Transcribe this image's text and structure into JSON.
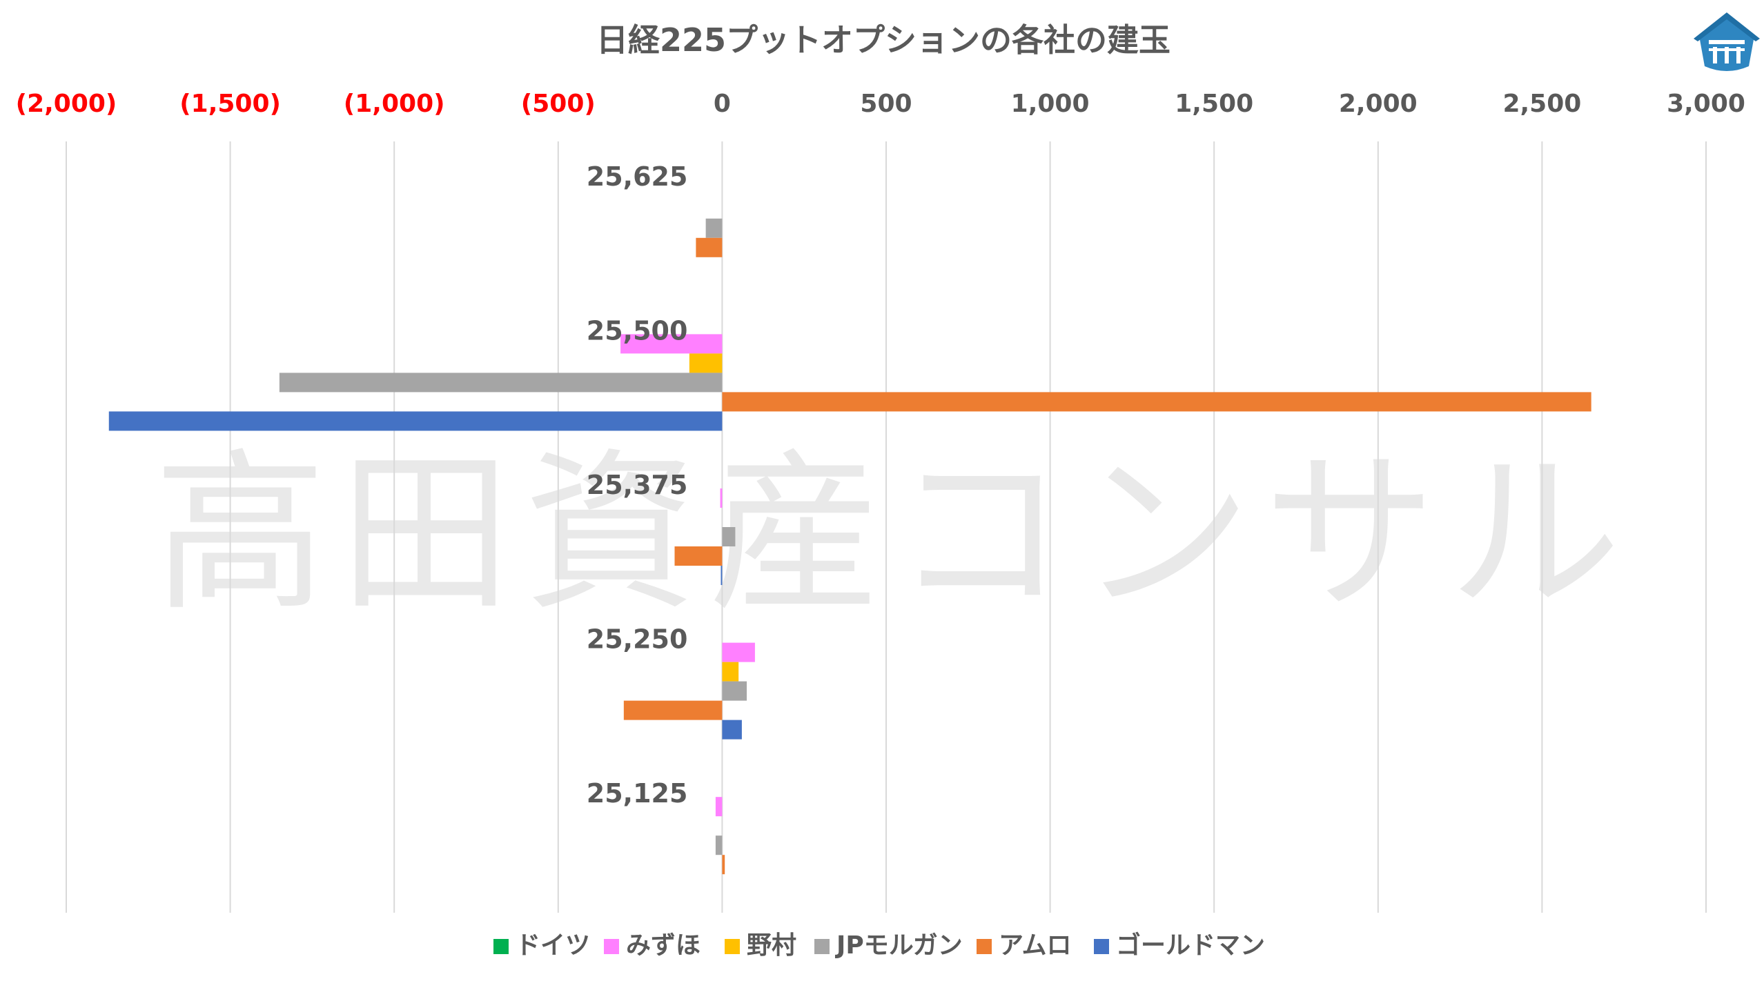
{
  "chart_data": {
    "type": "bar",
    "orientation": "horizontal",
    "title": "日経225プットオプションの各社の建玉",
    "watermark": "高田資産コンサル",
    "xlim": [
      -2000,
      3000
    ],
    "x_ticks": [
      -2000,
      -1500,
      -1000,
      -500,
      0,
      500,
      1000,
      1500,
      2000,
      2500,
      3000
    ],
    "x_tick_labels": [
      "(2,000)",
      "(1,500)",
      "(1,000)",
      "(500)",
      "0",
      "500",
      "1,000",
      "1,500",
      "2,000",
      "2,500",
      "3,000"
    ],
    "x_axis_position": "top",
    "negative_tick_color": "#ff0000",
    "grid": true,
    "legend_position": "bottom",
    "categories": [
      "25,625",
      "25,500",
      "25,375",
      "25,250",
      "25,125"
    ],
    "series": [
      {
        "name": "ドイツ",
        "color": "#00b050",
        "values": [
          0,
          0,
          0,
          0,
          0
        ]
      },
      {
        "name": "みずほ",
        "color": "#ff80ff",
        "values": [
          0,
          -310,
          -6,
          100,
          -20
        ]
      },
      {
        "name": "野村",
        "color": "#ffc000",
        "values": [
          0,
          -100,
          0,
          50,
          0
        ]
      },
      {
        "name": "JPモルガン",
        "color": "#a5a5a5",
        "values": [
          -50,
          -1350,
          40,
          75,
          -20
        ]
      },
      {
        "name": "アムロ",
        "color": "#ed7d31",
        "values": [
          -80,
          2650,
          -145,
          -300,
          8
        ]
      },
      {
        "name": "ゴールドマン",
        "color": "#4472c4",
        "values": [
          0,
          -1870,
          -4,
          60,
          0
        ]
      }
    ]
  },
  "logo_icon": "shrine-roof-logo-icon"
}
